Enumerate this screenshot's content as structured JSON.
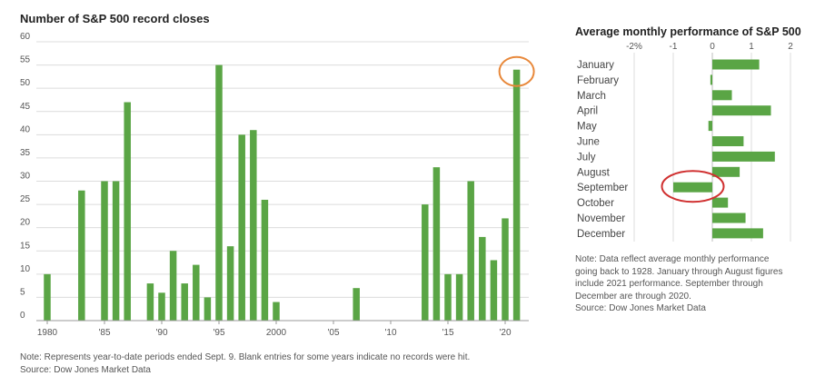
{
  "colors": {
    "bar": "#5aa545",
    "grid": "#dcdcdc",
    "axis": "#999999",
    "highlight_orange": "#e8883a",
    "highlight_red": "#d03030"
  },
  "left_panel": {
    "title": "Number of S&P 500 record closes",
    "note_lines": [
      "Note: Represents year-to-date periods ended Sept. 9. Blank entries for some years indicate no records were hit.",
      "Source: Dow Jones Market Data"
    ]
  },
  "right_panel": {
    "title": "Average monthly performance of S&P 500",
    "note_lines": [
      "Note: Data reflect average monthly performance",
      "going back to 1928. January through August figures",
      "include 2021 performance. September through",
      "December are through 2020.",
      "Source: Dow Jones Market Data"
    ]
  },
  "chart_data": [
    {
      "type": "bar",
      "title": "Number of S&P 500 record closes",
      "x": [
        1980,
        1981,
        1982,
        1983,
        1984,
        1985,
        1986,
        1987,
        1988,
        1989,
        1990,
        1991,
        1992,
        1993,
        1994,
        1995,
        1996,
        1997,
        1998,
        1999,
        2000,
        2001,
        2002,
        2003,
        2004,
        2005,
        2006,
        2007,
        2008,
        2009,
        2010,
        2011,
        2012,
        2013,
        2014,
        2015,
        2016,
        2017,
        2018,
        2019,
        2020,
        2021
      ],
      "values": [
        10,
        0,
        0,
        28,
        0,
        30,
        30,
        47,
        0,
        8,
        6,
        15,
        8,
        12,
        5,
        55,
        16,
        40,
        41,
        26,
        4,
        0,
        0,
        0,
        0,
        0,
        0,
        7,
        0,
        0,
        0,
        0,
        0,
        25,
        33,
        10,
        10,
        30,
        18,
        13,
        22,
        54
      ],
      "xtick_labels": [
        {
          "year": 1980,
          "label": "1980"
        },
        {
          "year": 1985,
          "label": "'85"
        },
        {
          "year": 1990,
          "label": "'90"
        },
        {
          "year": 1995,
          "label": "'95"
        },
        {
          "year": 2000,
          "label": "2000"
        },
        {
          "year": 2005,
          "label": "'05"
        },
        {
          "year": 2010,
          "label": "'10"
        },
        {
          "year": 2015,
          "label": "'15"
        },
        {
          "year": 2020,
          "label": "'20"
        }
      ],
      "yticks": [
        0,
        5,
        10,
        15,
        20,
        25,
        30,
        35,
        40,
        45,
        50,
        55,
        60
      ],
      "ylim": [
        0,
        60
      ],
      "grid": true,
      "highlight": {
        "year": 2021,
        "shape": "circle",
        "color": "orange"
      }
    },
    {
      "type": "bar",
      "orientation": "horizontal",
      "title": "Average monthly performance of S&P 500",
      "categories": [
        "January",
        "February",
        "March",
        "April",
        "May",
        "June",
        "July",
        "August",
        "September",
        "October",
        "November",
        "December"
      ],
      "values": [
        1.2,
        -0.05,
        0.5,
        1.5,
        -0.1,
        0.8,
        1.6,
        0.7,
        -1.0,
        0.4,
        0.85,
        1.3
      ],
      "xticks": [
        -2,
        -1,
        0,
        1,
        2
      ],
      "xtick_labels": [
        "-2%",
        "-1",
        "0",
        "1",
        "2"
      ],
      "xlim": [
        -2,
        2
      ],
      "grid": true,
      "highlight": {
        "category": "September",
        "shape": "ellipse",
        "color": "red"
      }
    }
  ]
}
